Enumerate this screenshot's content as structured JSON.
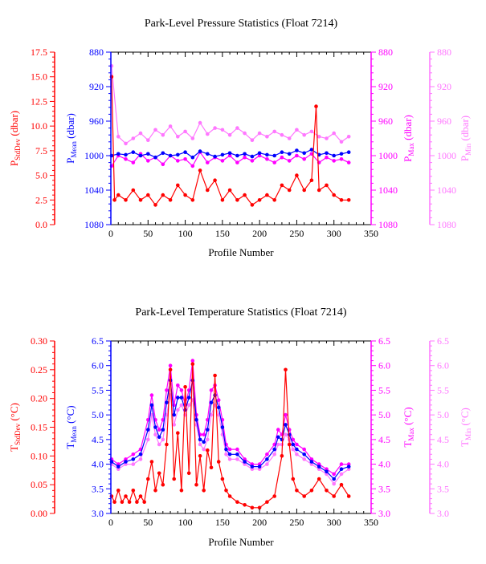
{
  "colors": {
    "stddev": "#ff0000",
    "mean": "#0000ff",
    "max": "#ff00ff",
    "min": "#ff77ff",
    "axis": "#000000"
  },
  "chart_data": [
    {
      "type": "line",
      "title": "Park-Level Pressure Statistics (Float 7214)",
      "xlabel": "Profile Number",
      "xlim": [
        0,
        350
      ],
      "xticks": [
        0,
        50,
        100,
        150,
        200,
        250,
        300,
        350
      ],
      "axes": {
        "stddev": {
          "label_main": "P",
          "label_sub": "StdDev",
          "label_unit": "(dbar)",
          "lim": [
            0,
            17.5
          ],
          "inverted": false,
          "ticks": [
            "0.0",
            "2.5",
            "5.0",
            "7.5",
            "10.0",
            "12.5",
            "15.0",
            "17.5"
          ]
        },
        "mean": {
          "label_main": "P",
          "label_sub": "Mean",
          "label_unit": "(dbar)",
          "lim": [
            880,
            1080
          ],
          "inverted": true,
          "ticks": [
            "880",
            "920",
            "960",
            "1000",
            "1040",
            "1080"
          ]
        },
        "max": {
          "label_main": "P",
          "label_sub": "Max",
          "label_unit": "(dbar)",
          "lim": [
            880,
            1080
          ],
          "inverted": true,
          "ticks": [
            "880",
            "920",
            "960",
            "1000",
            "1040",
            "1080"
          ]
        },
        "min": {
          "label_main": "P",
          "label_sub": "Min",
          "label_unit": "(dbar)",
          "lim": [
            880,
            1080
          ],
          "inverted": true,
          "ticks": [
            "880",
            "920",
            "960",
            "1000",
            "1040",
            "1080"
          ]
        }
      },
      "series": [
        {
          "key": "min",
          "axis": "min",
          "x": [
            1,
            10,
            20,
            30,
            40,
            50,
            60,
            70,
            80,
            90,
            100,
            110,
            120,
            130,
            140,
            150,
            160,
            170,
            180,
            190,
            200,
            210,
            220,
            230,
            240,
            250,
            260,
            270,
            280,
            290,
            300,
            310,
            320
          ],
          "y": [
            896,
            978,
            986,
            980,
            974,
            982,
            970,
            976,
            966,
            978,
            972,
            980,
            962,
            975,
            968,
            970,
            976,
            968,
            974,
            982,
            974,
            978,
            972,
            976,
            980,
            970,
            976,
            972,
            978,
            980,
            974,
            984,
            978
          ]
        },
        {
          "key": "max",
          "axis": "max",
          "x": [
            1,
            10,
            20,
            30,
            40,
            50,
            60,
            70,
            80,
            90,
            100,
            110,
            120,
            130,
            140,
            150,
            160,
            170,
            180,
            190,
            200,
            210,
            220,
            230,
            240,
            250,
            260,
            270,
            280,
            290,
            300,
            310,
            320
          ],
          "y": [
            1012,
            1000,
            1004,
            1008,
            998,
            1006,
            1002,
            1010,
            1000,
            1006,
            1004,
            1012,
            996,
            1008,
            1002,
            1006,
            1000,
            1008,
            1002,
            1006,
            1000,
            1004,
            1008,
            1002,
            1006,
            1000,
            1004,
            998,
            1008,
            1002,
            1006,
            1004,
            1008
          ]
        },
        {
          "key": "mean",
          "axis": "mean",
          "x": [
            1,
            10,
            20,
            30,
            40,
            50,
            60,
            70,
            80,
            90,
            100,
            110,
            120,
            130,
            140,
            150,
            160,
            170,
            180,
            190,
            200,
            210,
            220,
            230,
            240,
            250,
            260,
            270,
            280,
            290,
            300,
            310,
            320
          ],
          "y": [
            1000,
            998,
            999,
            996,
            1000,
            998,
            1002,
            997,
            1000,
            999,
            996,
            1002,
            995,
            998,
            1001,
            999,
            997,
            1000,
            998,
            1001,
            997,
            999,
            1000,
            996,
            998,
            994,
            997,
            993,
            999,
            997,
            1000,
            998,
            996
          ]
        },
        {
          "key": "stddev",
          "axis": "stddev",
          "x": [
            1,
            5,
            10,
            20,
            30,
            40,
            50,
            60,
            70,
            80,
            90,
            100,
            110,
            120,
            130,
            140,
            150,
            160,
            170,
            180,
            190,
            200,
            210,
            220,
            230,
            240,
            250,
            260,
            270,
            276,
            280,
            290,
            300,
            310,
            320
          ],
          "y": [
            15.0,
            2.5,
            3.0,
            2.5,
            3.5,
            2.5,
            3.0,
            2.0,
            3.0,
            2.5,
            4.0,
            3.0,
            2.5,
            5.5,
            3.5,
            4.5,
            2.5,
            3.5,
            2.5,
            3.0,
            2.0,
            2.5,
            3.0,
            2.5,
            4.0,
            3.5,
            5.0,
            3.5,
            4.5,
            12.0,
            3.5,
            4.0,
            3.0,
            2.5,
            2.5
          ]
        }
      ]
    },
    {
      "type": "line",
      "title": "Park-Level Temperature Statistics (Float 7214)",
      "xlabel": "Profile Number",
      "xlim": [
        0,
        350
      ],
      "xticks": [
        0,
        50,
        100,
        150,
        200,
        250,
        300,
        350
      ],
      "axes": {
        "stddev": {
          "label_main": "T",
          "label_sub": "StdDev",
          "label_unit": "(°C)",
          "lim": [
            0,
            0.3
          ],
          "inverted": false,
          "ticks": [
            "0.00",
            "0.05",
            "0.10",
            "0.15",
            "0.20",
            "0.25",
            "0.30"
          ]
        },
        "mean": {
          "label_main": "T",
          "label_sub": "Mean",
          "label_unit": "(°C)",
          "lim": [
            3.0,
            6.5
          ],
          "inverted": false,
          "ticks": [
            "3.0",
            "3.5",
            "4.0",
            "4.5",
            "5.0",
            "5.5",
            "6.0",
            "6.5"
          ]
        },
        "max": {
          "label_main": "T",
          "label_sub": "Max",
          "label_unit": "(°C)",
          "lim": [
            3.0,
            6.5
          ],
          "inverted": false,
          "ticks": [
            "3.0",
            "3.5",
            "4.0",
            "4.5",
            "5.0",
            "5.5",
            "6.0",
            "6.5"
          ]
        },
        "min": {
          "label_main": "T",
          "label_sub": "Min",
          "label_unit": "(°C)",
          "lim": [
            3.0,
            6.5
          ],
          "inverted": false,
          "ticks": [
            "3.0",
            "3.5",
            "4.0",
            "4.5",
            "5.0",
            "5.5",
            "6.0",
            "6.5"
          ]
        }
      },
      "series": [
        {
          "key": "min",
          "axis": "min",
          "x": [
            1,
            10,
            20,
            30,
            40,
            50,
            55,
            60,
            65,
            70,
            75,
            80,
            85,
            90,
            95,
            100,
            105,
            110,
            115,
            120,
            125,
            130,
            135,
            140,
            145,
            150,
            155,
            160,
            170,
            180,
            190,
            200,
            210,
            220,
            225,
            230,
            235,
            240,
            245,
            250,
            260,
            270,
            280,
            290,
            300,
            310,
            320
          ],
          "y": [
            4.0,
            3.9,
            4.0,
            4.0,
            4.1,
            4.5,
            5.0,
            4.6,
            4.4,
            4.5,
            5.0,
            5.4,
            4.8,
            5.1,
            5.2,
            5.0,
            5.2,
            5.3,
            4.8,
            4.4,
            4.3,
            4.5,
            5.0,
            5.2,
            5.0,
            4.6,
            4.2,
            4.1,
            4.1,
            4.0,
            3.9,
            3.9,
            4.0,
            4.2,
            4.4,
            4.4,
            4.6,
            4.5,
            4.3,
            4.2,
            4.1,
            4.0,
            3.9,
            3.8,
            3.6,
            3.8,
            3.9
          ]
        },
        {
          "key": "max",
          "axis": "max",
          "x": [
            1,
            10,
            20,
            30,
            40,
            50,
            55,
            60,
            65,
            70,
            75,
            80,
            85,
            90,
            95,
            100,
            105,
            110,
            115,
            120,
            125,
            130,
            135,
            140,
            145,
            150,
            155,
            160,
            170,
            180,
            190,
            200,
            210,
            220,
            225,
            230,
            235,
            240,
            245,
            250,
            260,
            270,
            280,
            290,
            300,
            310,
            320
          ],
          "y": [
            4.1,
            4.0,
            4.1,
            4.2,
            4.3,
            4.9,
            5.4,
            4.9,
            4.7,
            4.9,
            5.5,
            6.0,
            5.2,
            5.6,
            5.5,
            5.2,
            5.5,
            6.1,
            5.0,
            4.6,
            4.6,
            4.9,
            5.5,
            5.6,
            5.3,
            4.9,
            4.4,
            4.3,
            4.3,
            4.1,
            4.0,
            4.0,
            4.2,
            4.4,
            4.7,
            4.6,
            5.0,
            4.7,
            4.5,
            4.4,
            4.3,
            4.1,
            4.0,
            3.9,
            3.8,
            4.0,
            4.0
          ]
        },
        {
          "key": "mean",
          "axis": "mean",
          "x": [
            1,
            10,
            20,
            30,
            40,
            50,
            55,
            60,
            65,
            70,
            75,
            80,
            85,
            90,
            95,
            100,
            105,
            110,
            115,
            120,
            125,
            130,
            135,
            140,
            145,
            150,
            155,
            160,
            170,
            180,
            190,
            200,
            210,
            220,
            225,
            230,
            235,
            240,
            245,
            250,
            260,
            270,
            280,
            290,
            300,
            310,
            320
          ],
          "y": [
            4.05,
            3.95,
            4.05,
            4.1,
            4.2,
            4.7,
            5.2,
            4.75,
            4.55,
            4.7,
            5.25,
            5.7,
            5.0,
            5.35,
            5.35,
            5.1,
            5.35,
            5.7,
            4.9,
            4.5,
            4.45,
            4.7,
            5.25,
            5.4,
            5.15,
            4.75,
            4.3,
            4.2,
            4.2,
            4.05,
            3.95,
            3.95,
            4.1,
            4.3,
            4.55,
            4.5,
            4.8,
            4.6,
            4.4,
            4.3,
            4.2,
            4.05,
            3.95,
            3.85,
            3.7,
            3.9,
            3.95
          ]
        },
        {
          "key": "stddev",
          "axis": "stddev",
          "x": [
            1,
            5,
            10,
            15,
            20,
            25,
            30,
            35,
            40,
            45,
            50,
            55,
            60,
            65,
            70,
            75,
            80,
            85,
            90,
            95,
            100,
            105,
            110,
            115,
            120,
            125,
            130,
            135,
            140,
            145,
            150,
            155,
            160,
            170,
            180,
            190,
            200,
            210,
            220,
            230,
            235,
            240,
            245,
            250,
            260,
            270,
            280,
            290,
            300,
            310,
            320
          ],
          "y": [
            0.03,
            0.02,
            0.04,
            0.02,
            0.03,
            0.02,
            0.04,
            0.02,
            0.03,
            0.02,
            0.06,
            0.09,
            0.04,
            0.07,
            0.05,
            0.12,
            0.25,
            0.06,
            0.14,
            0.04,
            0.22,
            0.07,
            0.26,
            0.05,
            0.1,
            0.04,
            0.11,
            0.08,
            0.24,
            0.09,
            0.06,
            0.04,
            0.03,
            0.02,
            0.015,
            0.01,
            0.01,
            0.02,
            0.03,
            0.1,
            0.25,
            0.12,
            0.06,
            0.04,
            0.03,
            0.04,
            0.06,
            0.04,
            0.03,
            0.05,
            0.03
          ]
        }
      ]
    }
  ]
}
